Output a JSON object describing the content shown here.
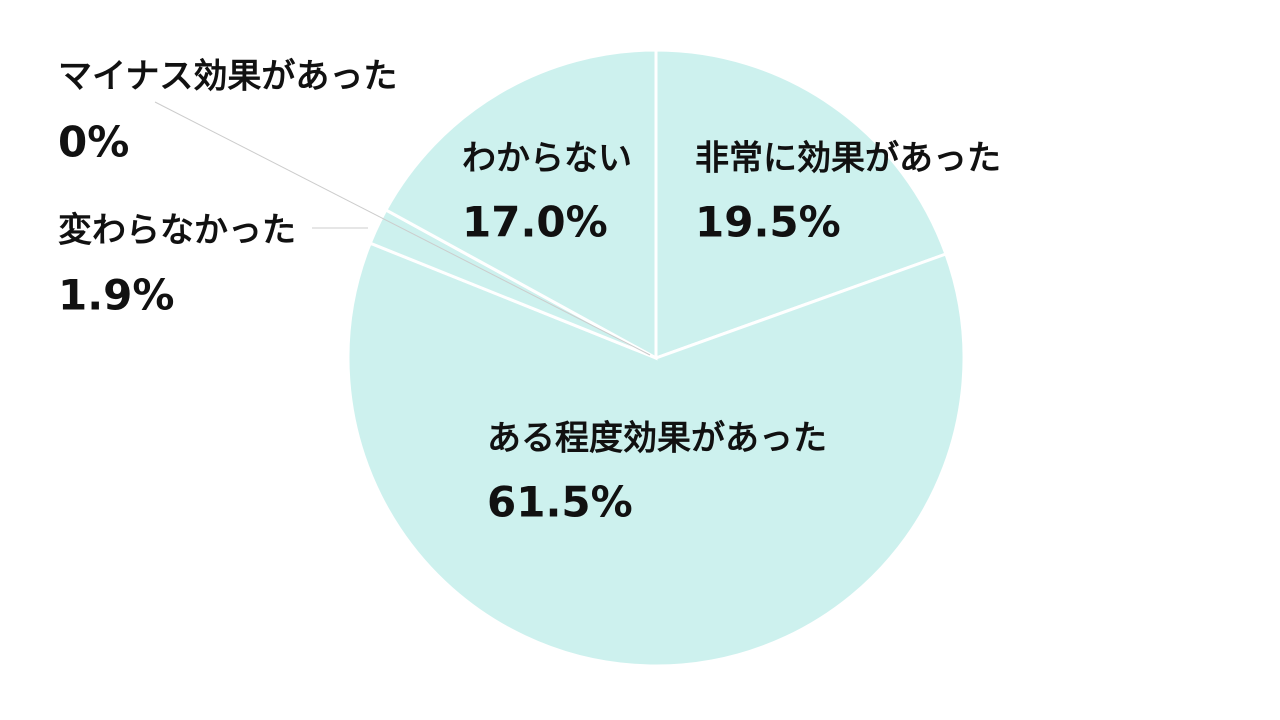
{
  "chart_data": {
    "type": "pie",
    "categories": [
      "非常に効果があった",
      "ある程度効果があった",
      "変わらなかった",
      "マイナス効果があった",
      "わからない"
    ],
    "values": [
      19.5,
      61.5,
      1.9,
      0,
      17.0
    ],
    "value_labels": [
      "19.5%",
      "61.5%",
      "1.9%",
      "0%",
      "17.0%"
    ],
    "color": "#cdf1ee"
  }
}
